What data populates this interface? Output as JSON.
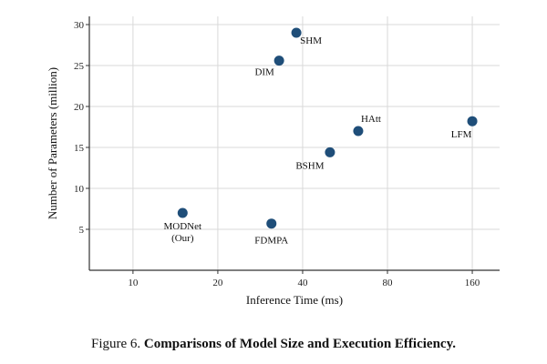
{
  "chart_data": {
    "type": "scatter",
    "xlabel": "Inference Time (ms)",
    "ylabel": "Number of Parameters (million)",
    "x_scale": "log2",
    "xlim": [
      7,
      200
    ],
    "ylim": [
      0,
      31
    ],
    "x_ticks": [
      10,
      20,
      40,
      80,
      160
    ],
    "y_ticks": [
      5,
      10,
      15,
      20,
      25,
      30
    ],
    "grid": true,
    "marker_color": "#1f4e79",
    "points": [
      {
        "label": "MODNet",
        "label2": "(Our)",
        "x": 15,
        "y": 7.0
      },
      {
        "label": "FDMPA",
        "x": 31,
        "y": 5.7
      },
      {
        "label": "DIM",
        "x": 33,
        "y": 25.6
      },
      {
        "label": "SHM",
        "x": 38,
        "y": 29.0
      },
      {
        "label": "BSHM",
        "x": 50,
        "y": 14.4
      },
      {
        "label": "HAtt",
        "x": 63,
        "y": 17.0
      },
      {
        "label": "LFM",
        "x": 160,
        "y": 18.2
      }
    ]
  },
  "caption": {
    "prefix": "Figure 6. ",
    "bold": "Comparisons of Model Size and Execution Efficiency."
  }
}
